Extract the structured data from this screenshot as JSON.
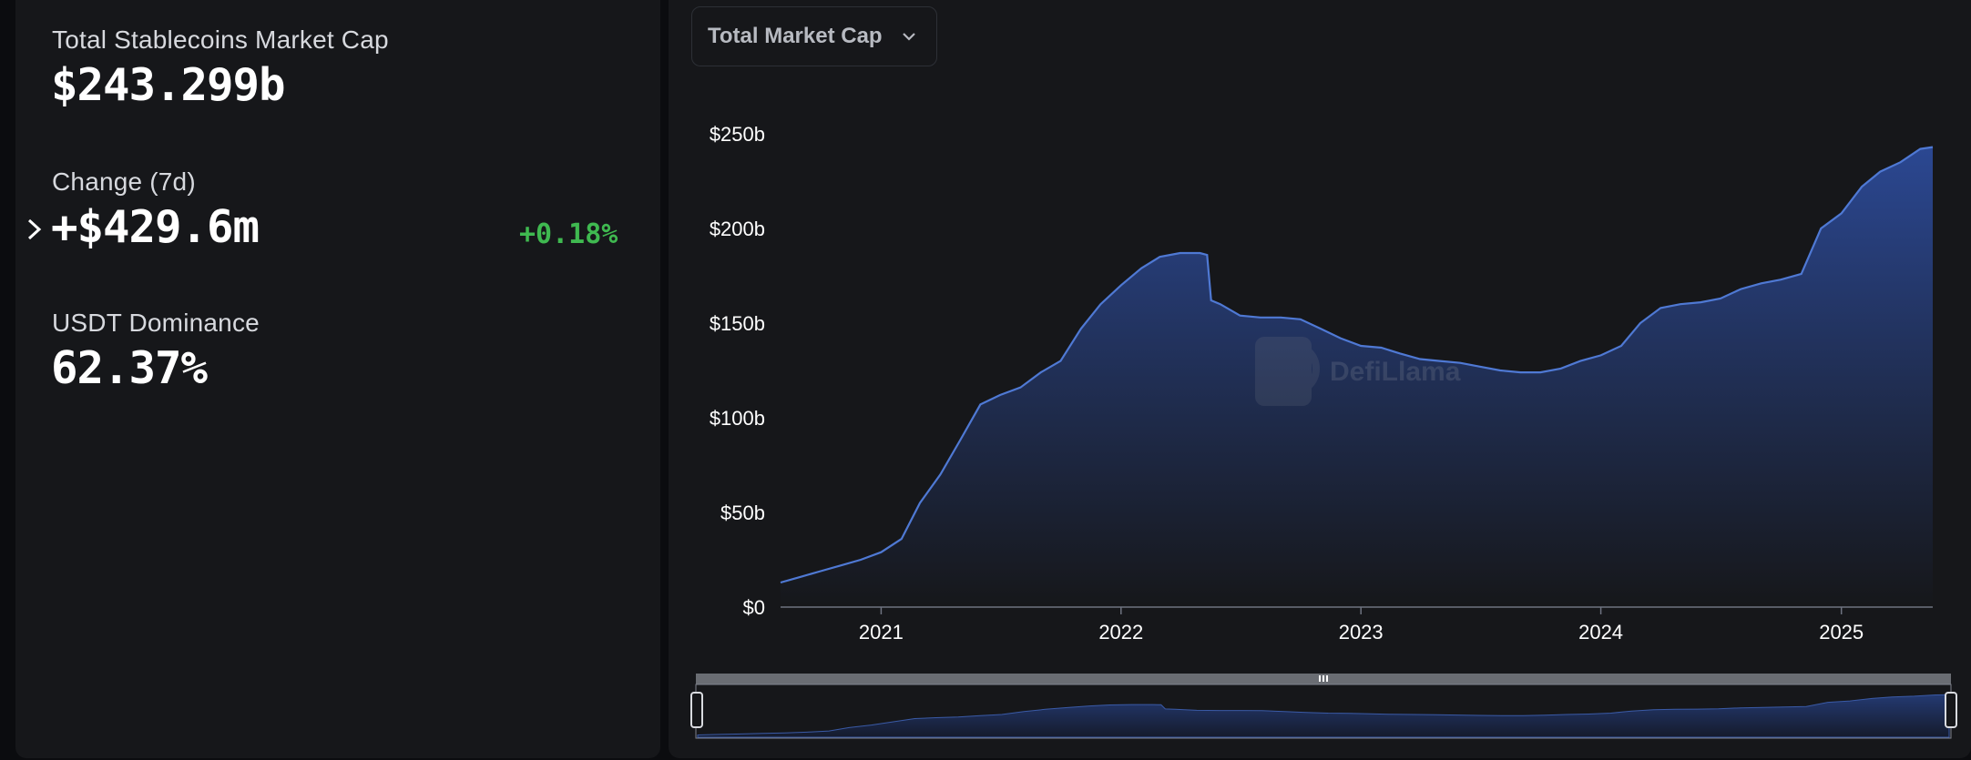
{
  "stats": {
    "market_cap_label": "Total Stablecoins Market Cap",
    "market_cap_value": "$243.299b",
    "change_label": "Change (7d)",
    "change_value": "+$429.6m",
    "change_pct": "+0.18%",
    "dominance_label": "USDT Dominance",
    "dominance_value": "62.37%"
  },
  "dropdown": {
    "selected": "Total Market Cap",
    "icon": "chevron-down-icon"
  },
  "watermark": {
    "text": "DefiLlama"
  },
  "colors": {
    "line": "#4f79d4",
    "fill_top": "#2c4a98",
    "positive": "#3fb950",
    "axis_text": "#ffffff"
  },
  "chart_data": {
    "type": "area",
    "title": "",
    "xlabel": "",
    "ylabel": "",
    "x_ticks": [
      "2021",
      "2022",
      "2023",
      "2024",
      "2025"
    ],
    "y_ticks": [
      "$0",
      "$50b",
      "$100b",
      "$150b",
      "$200b",
      "$250b"
    ],
    "ylim": [
      0,
      250
    ],
    "xlim": [
      "2020-08-01",
      "2025-05-20"
    ],
    "grid": false,
    "series": [
      {
        "values_unit": "billion USD",
        "points": [
          [
            "2020-08-01",
            13
          ],
          [
            "2020-09-01",
            16
          ],
          [
            "2020-10-01",
            19
          ],
          [
            "2020-11-01",
            22
          ],
          [
            "2020-12-01",
            25
          ],
          [
            "2021-01-01",
            29
          ],
          [
            "2021-02-01",
            36
          ],
          [
            "2021-03-01",
            55
          ],
          [
            "2021-04-01",
            70
          ],
          [
            "2021-05-01",
            88
          ],
          [
            "2021-06-01",
            107
          ],
          [
            "2021-07-01",
            112
          ],
          [
            "2021-08-01",
            116
          ],
          [
            "2021-09-01",
            124
          ],
          [
            "2021-10-01",
            130
          ],
          [
            "2021-11-01",
            147
          ],
          [
            "2021-12-01",
            160
          ],
          [
            "2022-01-01",
            170
          ],
          [
            "2022-02-01",
            179
          ],
          [
            "2022-03-01",
            185
          ],
          [
            "2022-04-01",
            187
          ],
          [
            "2022-05-01",
            187
          ],
          [
            "2022-05-12",
            186
          ],
          [
            "2022-05-18",
            162
          ],
          [
            "2022-06-01",
            160
          ],
          [
            "2022-07-01",
            154
          ],
          [
            "2022-08-01",
            153
          ],
          [
            "2022-09-01",
            153
          ],
          [
            "2022-10-01",
            152
          ],
          [
            "2022-11-01",
            147
          ],
          [
            "2022-12-01",
            142
          ],
          [
            "2023-01-01",
            138
          ],
          [
            "2023-02-01",
            137
          ],
          [
            "2023-03-01",
            134
          ],
          [
            "2023-04-01",
            131
          ],
          [
            "2023-05-01",
            130
          ],
          [
            "2023-06-01",
            129
          ],
          [
            "2023-07-01",
            127
          ],
          [
            "2023-08-01",
            125
          ],
          [
            "2023-09-01",
            124
          ],
          [
            "2023-10-01",
            124
          ],
          [
            "2023-11-01",
            126
          ],
          [
            "2023-12-01",
            130
          ],
          [
            "2024-01-01",
            133
          ],
          [
            "2024-02-01",
            138
          ],
          [
            "2024-03-01",
            150
          ],
          [
            "2024-04-01",
            158
          ],
          [
            "2024-05-01",
            160
          ],
          [
            "2024-06-01",
            161
          ],
          [
            "2024-07-01",
            163
          ],
          [
            "2024-08-01",
            168
          ],
          [
            "2024-09-01",
            171
          ],
          [
            "2024-10-01",
            173
          ],
          [
            "2024-11-01",
            176
          ],
          [
            "2024-12-01",
            200
          ],
          [
            "2025-01-01",
            208
          ],
          [
            "2025-02-01",
            222
          ],
          [
            "2025-03-01",
            230
          ],
          [
            "2025-04-01",
            235
          ],
          [
            "2025-05-01",
            242
          ],
          [
            "2025-05-20",
            243
          ]
        ]
      }
    ]
  }
}
